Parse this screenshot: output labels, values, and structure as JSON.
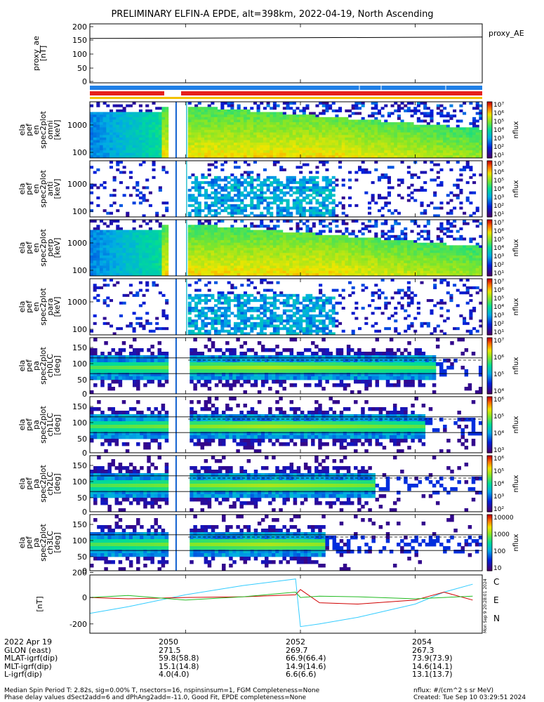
{
  "title": "PRELIMINARY ELFIN-A EPDE, alt=398km, 2022-04-19, North Ascending",
  "colors": {
    "orbit_bar": "#1f7fe6",
    "science_bar": "#e6201c",
    "mode_bar": "#f2c200",
    "btrace": "#000000",
    "b_c": "#33ccff",
    "b_e": "#d00000",
    "b_n": "#22bb22"
  },
  "panels": [
    {
      "id": "ae",
      "ylabel_lines": [
        "proxy_ae",
        "[nT]"
      ],
      "yticks": [
        "200",
        "150",
        "100",
        "50",
        "0"
      ],
      "right_label": "proxy_AE"
    },
    {
      "id": "spec_omni",
      "ylabel_lines": [
        "ela",
        "pef",
        "en",
        "spec2plot",
        "omni",
        "[keV]"
      ],
      "yticks": [
        "1000",
        "100"
      ],
      "cbar_ticks": [
        "10⁷",
        "10⁶",
        "10⁵",
        "10⁴",
        "10³",
        "10²",
        "10¹"
      ],
      "cbar_label": "nflux"
    },
    {
      "id": "spec_anti",
      "ylabel_lines": [
        "ela",
        "pef",
        "en",
        "spec2plot",
        "anti",
        "[keV]"
      ],
      "yticks": [
        "1000",
        "100"
      ],
      "cbar_ticks": [
        "10⁷",
        "10⁶",
        "10⁵",
        "10⁴",
        "10³",
        "10²",
        "10¹"
      ],
      "cbar_label": "nflux"
    },
    {
      "id": "spec_perp",
      "ylabel_lines": [
        "ela",
        "pef",
        "en",
        "spec2plot",
        "perp",
        "[keV]"
      ],
      "yticks": [
        "1000",
        "100"
      ],
      "cbar_ticks": [
        "10⁷",
        "10⁶",
        "10⁵",
        "10⁴",
        "10³",
        "10²",
        "10¹"
      ],
      "cbar_label": "nflux"
    },
    {
      "id": "spec_para",
      "ylabel_lines": [
        "ela",
        "pef",
        "en",
        "spec2plot",
        "para",
        "[keV]"
      ],
      "yticks": [
        "1000",
        "100"
      ],
      "cbar_ticks": [
        "10⁷",
        "10⁶",
        "10⁵",
        "10⁴",
        "10³",
        "10²",
        "10¹"
      ],
      "cbar_label": "nflux"
    },
    {
      "id": "pa_ch0",
      "ylabel_lines": [
        "ela",
        "pef",
        "pa",
        "spec2plot",
        "ch0LC",
        "[deg]"
      ],
      "yticks": [
        "150",
        "100",
        "50",
        "0"
      ],
      "cbar_ticks": [
        "10⁷",
        "10⁶",
        "10⁵",
        "10⁴"
      ],
      "cbar_label": "nflux"
    },
    {
      "id": "pa_ch1",
      "ylabel_lines": [
        "ela",
        "pef",
        "pa",
        "spec2plot",
        "ch1LC",
        "[deg]"
      ],
      "yticks": [
        "150",
        "100",
        "50",
        "0"
      ],
      "cbar_ticks": [
        "10⁶",
        "10⁵",
        "10⁴",
        "10³"
      ],
      "cbar_label": "nflux"
    },
    {
      "id": "pa_ch2",
      "ylabel_lines": [
        "ela",
        "pef",
        "pa",
        "spec2plot",
        "ch2LC",
        "[deg]"
      ],
      "yticks": [
        "150",
        "100",
        "50",
        "0"
      ],
      "cbar_ticks": [
        "10⁶",
        "10⁵",
        "10⁴",
        "10³",
        "10²"
      ],
      "cbar_label": "nflux"
    },
    {
      "id": "pa_ch3",
      "ylabel_lines": [
        "ela",
        "pef",
        "pa",
        "spec2plot",
        "ch3LC",
        "[deg]"
      ],
      "yticks": [
        "150",
        "100",
        "50",
        "0"
      ],
      "cbar_ticks": [
        "10000",
        "1000",
        "100",
        "10"
      ],
      "cbar_label": "nflux"
    },
    {
      "id": "bfield",
      "ylabel_lines": [
        "[nT]"
      ],
      "yticks": [
        "200",
        "0",
        "-200"
      ],
      "legend": [
        "C",
        "E",
        "N"
      ],
      "rotated_note": "Mon Sep 9 20:28:01 2024"
    }
  ],
  "chart_data": {
    "type": "line",
    "title": "PRELIMINARY ELFIN-A EPDE, alt=398km, 2022-04-19, North Ascending",
    "x_tick_labels": [
      "2050",
      "2052",
      "2054"
    ],
    "xlim_minutes": [
      "20:48:20",
      "20:55:10"
    ],
    "proxy_ae": {
      "x": [
        "20:48:20",
        "20:55:10"
      ],
      "values": [
        158,
        163
      ],
      "ylim": [
        0,
        200
      ]
    },
    "gap_minutes": [
      "20:49:45",
      "20:50:02"
    ],
    "energy_range_keV": [
      50,
      6000
    ],
    "pitch_angle_range_deg": [
      0,
      180
    ],
    "bfield_nT": {
      "x": [
        "20:48:20",
        "20:49:00",
        "20:50:00",
        "20:51:00",
        "20:51:55",
        "20:52:00",
        "20:52:20",
        "20:53:00",
        "20:54:00",
        "20:54:30",
        "20:55:00"
      ],
      "series": [
        {
          "name": "C",
          "values": [
            -120,
            -70,
            20,
            90,
            140,
            -220,
            -200,
            -150,
            -50,
            40,
            100
          ]
        },
        {
          "name": "E",
          "values": [
            0,
            -10,
            0,
            5,
            20,
            60,
            -40,
            -50,
            -20,
            40,
            -20
          ]
        },
        {
          "name": "N",
          "values": [
            0,
            15,
            -20,
            5,
            40,
            0,
            10,
            5,
            -10,
            0,
            10
          ]
        }
      ],
      "ylim": [
        -270,
        170
      ]
    }
  },
  "footer": {
    "rows": [
      {
        "label": "2022 Apr 19",
        "values": [
          "2050",
          "2052",
          "2054"
        ]
      },
      {
        "label": "GLON (east)",
        "values": [
          "271.5",
          "269.7",
          "267.3"
        ]
      },
      {
        "label": "MLAT-igrf(dip)",
        "values": [
          "59.8(58.8)",
          "66.9(66.4)",
          "73.9(73.9)"
        ]
      },
      {
        "label": "MLT-igrf(dip)",
        "values": [
          "15.1(14.8)",
          "14.9(14.6)",
          "14.6(14.1)"
        ]
      },
      {
        "label": "L-igrf(dip)",
        "values": [
          "4.0(4.0)",
          "6.6(6.6)",
          "13.1(13.7)"
        ]
      }
    ],
    "note_line1": "Median Spin Period T: 2.82s, sig=0.00% T, nsectors=16, nspinsinsum=1, FGM Completeness=None",
    "note_line2": "Phase delay values dSect2add=6 and dPhAng2add=-11.0, Good Fit, EPDE completeness=None",
    "units": "nflux: #/(cm^2 s sr MeV)",
    "created": "Created: Tue Sep 10 03:29:51 2024"
  }
}
